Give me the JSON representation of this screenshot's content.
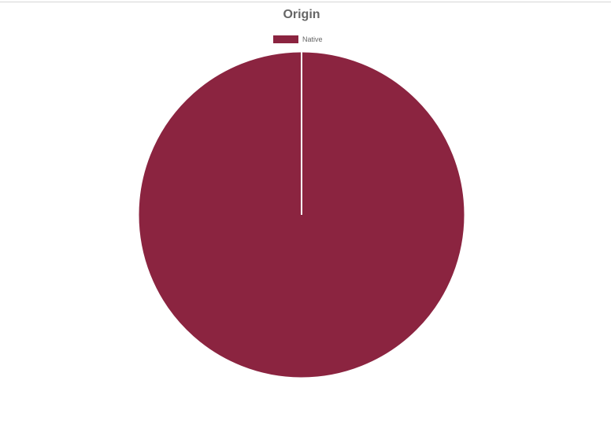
{
  "chart_data": {
    "type": "pie",
    "title": "Origin",
    "legend_position": "top",
    "slices": [
      {
        "label": "Native",
        "value": 100,
        "color": "#8B2440"
      }
    ]
  },
  "colors": {
    "slice_border": "#ffffff",
    "title_text": "#666666"
  }
}
